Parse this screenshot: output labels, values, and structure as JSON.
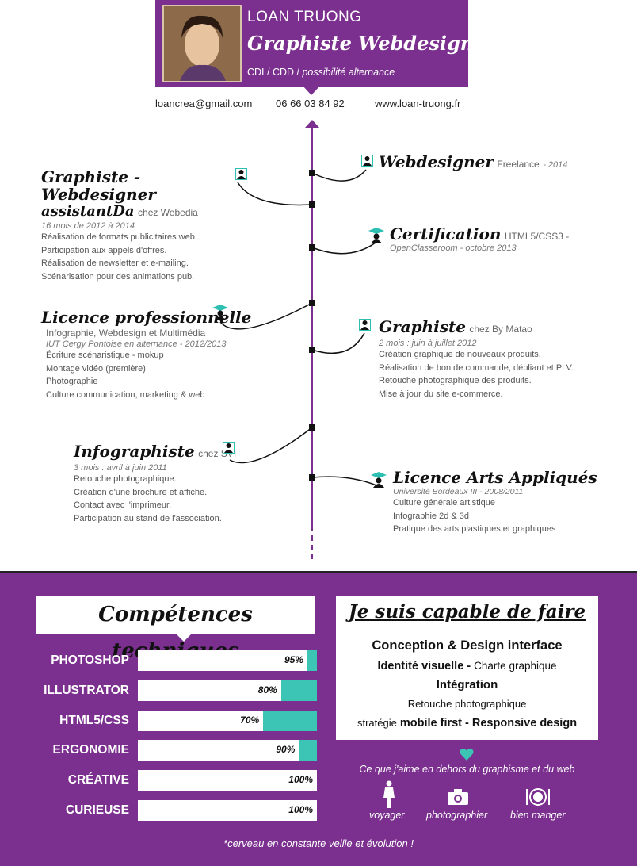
{
  "header": {
    "name": "LOAN TRUONG",
    "job": "Graphiste Webdesigner",
    "contract_prefix": "CDI / CDD /",
    "contract_suffix": "possibilité alternance"
  },
  "contact": {
    "email": "loancrea@gmail.com",
    "phone": "06 66 03 84 92",
    "website": "www.loan-truong.fr"
  },
  "timeline_left": [
    {
      "title": "Graphiste - Webdesigner",
      "title2": "assistantDa",
      "company": "chez Webedia",
      "period": "16 mois de 2012 à 2014",
      "lines": [
        "Réalisation de formats publicitaires web.",
        "Participation aux appels d'offres.",
        "Réalisation de newsletter et e-mailing.",
        "Scénarisation pour des animations pub."
      ]
    },
    {
      "title": "Licence professionnelle",
      "subtitle": "Infographie, Webdesign et Multimédia",
      "period": "IUT Cergy Pontoise en alternance - 2012/2013",
      "lines": [
        "Écriture scénaristique - mokup",
        "Montage vidéo (première)",
        "Photographie",
        "Culture communication, marketing & web"
      ]
    },
    {
      "title": "Infographiste",
      "company": "chez SVI",
      "period": "3 mois : avril à juin 2011",
      "lines": [
        "Retouche photographique.",
        "Création d'une brochure et affiche.",
        "Contact avec l'imprimeur.",
        "Participation au stand de l'association."
      ]
    }
  ],
  "timeline_right": [
    {
      "title": "Webdesigner",
      "company": "Freelance",
      "period": "- 2014"
    },
    {
      "title": "Certification",
      "company": "HTML5/CSS3 -",
      "period": "OpenClasseroom - octobre 2013"
    },
    {
      "title": "Graphiste",
      "company": "chez By Matao",
      "period": "2 mois : juin à juillet 2012",
      "lines": [
        "Création graphique de nouveaux produits.",
        "Réalisation de bon de commande, dépliant et PLV.",
        "Retouche photographique des produits.",
        "Mise à jour du site e-commerce."
      ]
    },
    {
      "title": "Licence Arts Appliqués",
      "period": "Université Bordeaux III - 2008/2011",
      "lines": [
        "Culture générale artistique",
        "Infographie 2d & 3d",
        "Pratique des arts plastiques et graphiques"
      ]
    }
  ],
  "skills": {
    "title": "Compétences techniques",
    "items": [
      {
        "label": "PHOTOSHOP",
        "pct_text": "95%",
        "value": 95
      },
      {
        "label": "ILLUSTRATOR",
        "pct_text": "80%",
        "value": 80
      },
      {
        "label": "HTML5/CSS",
        "pct_text": "70%",
        "value": 70
      },
      {
        "label": "ERGONOMIE",
        "pct_text": "90%",
        "value": 90
      },
      {
        "label": "CRÉATIVE",
        "pct_text": "100%",
        "value": 100
      },
      {
        "label": "CURIEUSE",
        "pct_text": "100%",
        "value": 100
      }
    ]
  },
  "capable": {
    "title": "Je suis capable de faire",
    "line1": "Conception & Design interface",
    "line2a": "Identité visuelle -",
    "line2b": "Charte graphique",
    "line3": "Intégration",
    "line4": "Retouche photographique",
    "line5a": "stratégie",
    "line5b": "mobile first - Responsive design"
  },
  "hobbies": {
    "title": "Ce que j'aime en dehors du graphisme et du web",
    "items": [
      {
        "label": "voyager",
        "icon": "traveler-icon"
      },
      {
        "label": "photographier",
        "icon": "camera-icon"
      },
      {
        "label": "bien manger",
        "icon": "plate-icon"
      }
    ]
  },
  "footer": "*cerveau en constante veille et évolution !",
  "colors": {
    "purple": "#7b2f8e",
    "teal": "#3cc4b4"
  }
}
